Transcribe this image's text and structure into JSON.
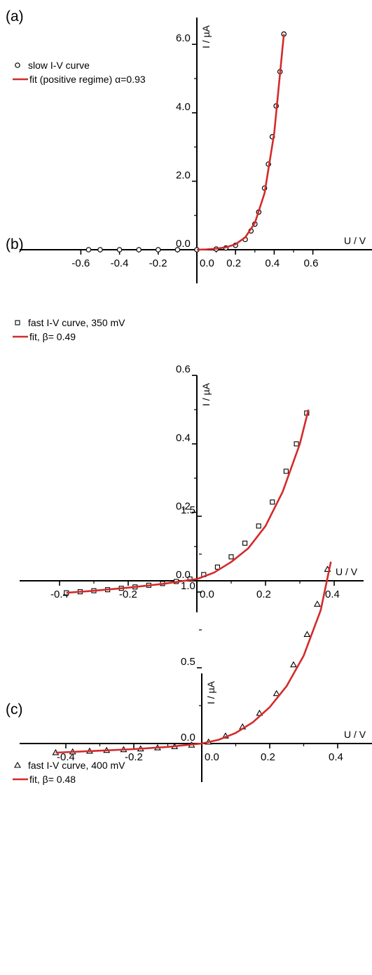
{
  "chart_data": [
    {
      "type": "scatter",
      "panel_label": "(a)",
      "xlabel": "U / V",
      "ylabel": "I / µA",
      "xlim": [
        -0.78,
        0.7
      ],
      "ylim": [
        -1.0,
        6.5
      ],
      "x_ticks": [
        -0.6,
        -0.4,
        -0.2,
        0.0,
        0.2,
        0.4,
        0.6
      ],
      "x_tick_labels": [
        "-0.6",
        "-0.4",
        "-0.2",
        "0.0",
        "0.2",
        "0.4",
        "0.6"
      ],
      "y_ticks": [
        0.0,
        2.0,
        4.0,
        6.0
      ],
      "y_tick_labels": [
        "0.0",
        "2.0",
        "4.0",
        "6.0"
      ],
      "grid": false,
      "legend_position": "top-left",
      "series": [
        {
          "name": "slow I-V curve",
          "marker": "circle",
          "color": "#000000",
          "x": [
            -0.56,
            -0.5,
            -0.4,
            -0.3,
            -0.2,
            -0.1,
            0.0,
            0.1,
            0.15,
            0.2,
            0.25,
            0.28,
            0.3,
            0.32,
            0.35,
            0.37,
            0.39,
            0.41,
            0.43,
            0.45
          ],
          "y": [
            0.0,
            0.0,
            0.0,
            0.0,
            0.0,
            0.0,
            0.0,
            0.02,
            0.05,
            0.13,
            0.3,
            0.55,
            0.75,
            1.1,
            1.8,
            2.5,
            3.3,
            4.2,
            5.2,
            6.3
          ]
        },
        {
          "name": "fit (positive regime) α=0.93",
          "marker": "line",
          "color": "#d42a2a",
          "x": [
            0.0,
            0.05,
            0.1,
            0.15,
            0.2,
            0.25,
            0.3,
            0.35,
            0.4,
            0.45
          ],
          "y": [
            0.0,
            0.01,
            0.03,
            0.07,
            0.16,
            0.36,
            0.78,
            1.65,
            3.4,
            6.3
          ]
        }
      ]
    },
    {
      "type": "scatter",
      "panel_label": "(b)",
      "xlabel": "U / V",
      "ylabel": "I / µA",
      "xlim": [
        -0.52,
        0.52
      ],
      "ylim": [
        -0.08,
        0.6
      ],
      "x_ticks": [
        -0.4,
        -0.2,
        0.0,
        0.2,
        0.4
      ],
      "x_tick_labels": [
        "-0.4",
        "-0.2",
        "0.0",
        "0.2",
        "0.4"
      ],
      "y_ticks": [
        0.0,
        0.2,
        0.4,
        0.6
      ],
      "y_tick_labels": [
        "0.0",
        "0.2",
        "0.4",
        "0.6"
      ],
      "grid": false,
      "legend_position": "top-left",
      "series": [
        {
          "name": "fast I-V curve, 350 mV",
          "marker": "square",
          "color": "#000000",
          "x": [
            -0.38,
            -0.34,
            -0.3,
            -0.26,
            -0.22,
            -0.18,
            -0.14,
            -0.1,
            -0.06,
            -0.02,
            0.02,
            0.06,
            0.1,
            0.14,
            0.18,
            0.22,
            0.26,
            0.29,
            0.32
          ],
          "y": [
            -0.035,
            -0.032,
            -0.029,
            -0.026,
            -0.022,
            -0.018,
            -0.013,
            -0.008,
            -0.002,
            0.005,
            0.018,
            0.04,
            0.07,
            0.11,
            0.16,
            0.23,
            0.32,
            0.4,
            0.49
          ]
        },
        {
          "name": "fit, β= 0.49",
          "marker": "line",
          "color": "#d42a2a",
          "x": [
            -0.38,
            -0.3,
            -0.2,
            -0.1,
            0.0,
            0.05,
            0.1,
            0.15,
            0.2,
            0.25,
            0.3,
            0.325
          ],
          "y": [
            -0.035,
            -0.029,
            -0.02,
            -0.009,
            0.005,
            0.024,
            0.055,
            0.095,
            0.16,
            0.26,
            0.4,
            0.5
          ]
        }
      ]
    },
    {
      "type": "scatter",
      "panel_label": "(c)",
      "xlabel": "U / V",
      "ylabel": "I / µA",
      "xlim": [
        -0.53,
        0.48
      ],
      "ylim": [
        -0.2,
        1.5
      ],
      "x_ticks": [
        -0.4,
        -0.2,
        0.0,
        0.2,
        0.4
      ],
      "x_tick_labels": [
        "-0.4",
        "-0.2",
        "0.0",
        "0.2",
        "0.4"
      ],
      "y_ticks": [
        0.0,
        0.5,
        1.0,
        1.5
      ],
      "y_tick_labels": [
        "0.0",
        "0.5",
        "1.0",
        "1.5"
      ],
      "grid": false,
      "legend_position": "top-left",
      "series": [
        {
          "name": "fast I-V curve, 400 mV",
          "marker": "triangle",
          "color": "#000000",
          "x": [
            -0.43,
            -0.38,
            -0.33,
            -0.28,
            -0.23,
            -0.18,
            -0.13,
            -0.08,
            -0.03,
            0.02,
            0.07,
            0.12,
            0.17,
            0.22,
            0.27,
            0.31,
            0.34,
            0.37
          ],
          "y": [
            -0.06,
            -0.055,
            -0.05,
            -0.045,
            -0.04,
            -0.035,
            -0.028,
            -0.02,
            -0.01,
            0.01,
            0.05,
            0.11,
            0.2,
            0.33,
            0.52,
            0.72,
            0.92,
            1.15
          ]
        },
        {
          "name": "fit, β= 0.48",
          "marker": "line",
          "color": "#d42a2a",
          "x": [
            -0.43,
            -0.3,
            -0.2,
            -0.1,
            0.0,
            0.05,
            0.1,
            0.15,
            0.2,
            0.25,
            0.3,
            0.35,
            0.38
          ],
          "y": [
            -0.06,
            -0.047,
            -0.037,
            -0.022,
            0.0,
            0.025,
            0.07,
            0.14,
            0.24,
            0.38,
            0.58,
            0.88,
            1.2
          ]
        }
      ]
    }
  ]
}
